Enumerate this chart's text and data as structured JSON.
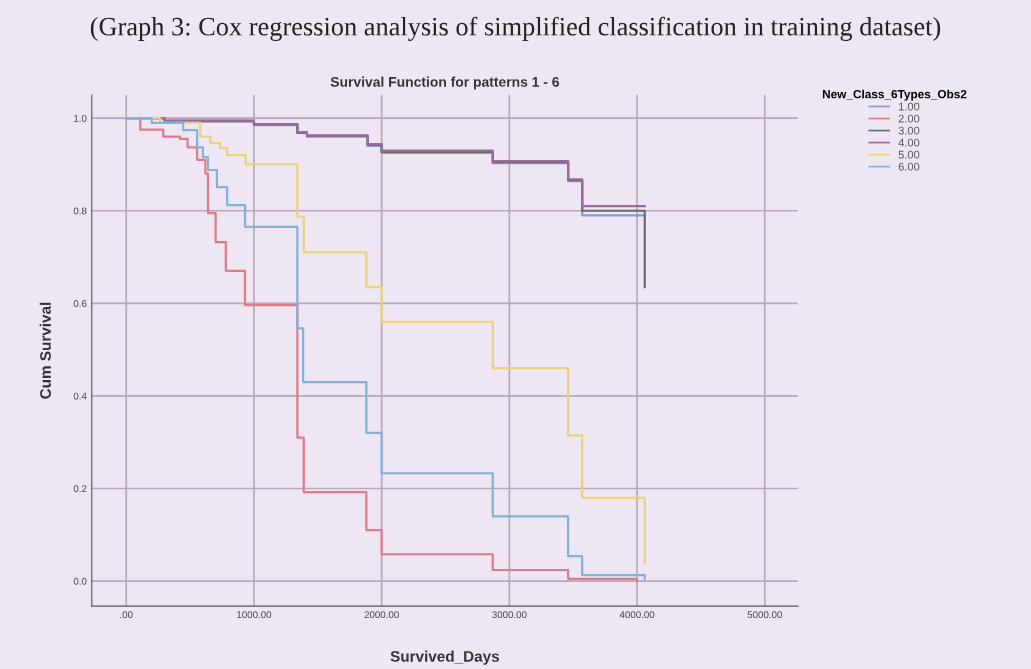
{
  "chart_data": {
    "type": "step",
    "title": "Survival Function for patterns 1 - 6",
    "xlabel": "Survived_Days",
    "ylabel": "Cum Survival",
    "legend_title": "New_Class_6Types_Obs2",
    "annotations": [
      "(Graph 3: Cox regression analysis of simplified classification in training dataset)"
    ],
    "xlim": [
      -270,
      5260
    ],
    "ylim": [
      -0.054,
      1.05
    ],
    "xticks": [
      {
        "value": 0,
        "label": ".00"
      },
      {
        "value": 1000,
        "label": "1000.00"
      },
      {
        "value": 2000,
        "label": "2000.00"
      },
      {
        "value": 3000,
        "label": "3000.00"
      },
      {
        "value": 4000,
        "label": "4000.00"
      },
      {
        "value": 5000,
        "label": "5000.00"
      }
    ],
    "yticks": [
      {
        "value": 0,
        "label": "0.0"
      },
      {
        "value": 0.2,
        "label": "0.2"
      },
      {
        "value": 0.4,
        "label": "0.4"
      },
      {
        "value": 0.6,
        "label": "0.6"
      },
      {
        "value": 0.8,
        "label": "0.8"
      },
      {
        "value": 1,
        "label": "1.0"
      }
    ],
    "grid": true,
    "legend": "top right",
    "marker": "none",
    "line_style": "solid",
    "series": [
      {
        "name": "1.00",
        "color": "#8a9bc8",
        "x": [
          0,
          300,
          1000,
          1340,
          1415,
          1890,
          2000,
          2870,
          3460,
          3570,
          4060
        ],
        "values": [
          1.0,
          0.995,
          0.985,
          0.968,
          0.96,
          0.94,
          0.925,
          0.903,
          0.864,
          0.79,
          0.79
        ]
      },
      {
        "name": "2.00",
        "color": "#e07a86",
        "x": [
          0,
          110,
          290,
          420,
          480,
          555,
          620,
          640,
          700,
          780,
          930,
          1340,
          1390,
          1880,
          2000,
          2870,
          3460,
          4000
        ],
        "values": [
          1.0,
          0.975,
          0.96,
          0.955,
          0.937,
          0.91,
          0.88,
          0.795,
          0.732,
          0.67,
          0.596,
          0.31,
          0.192,
          0.11,
          0.058,
          0.024,
          0.005,
          0.0
        ]
      },
      {
        "name": "3.00",
        "color": "#6b6b6b",
        "x": [
          0,
          300,
          1000,
          1340,
          1415,
          1890,
          2000,
          2870,
          3460,
          3570,
          4060
        ],
        "values": [
          1.0,
          0.993,
          0.987,
          0.968,
          0.962,
          0.942,
          0.927,
          0.905,
          0.866,
          0.8,
          0.635
        ]
      },
      {
        "name": "4.00",
        "color": "#9a6a9e",
        "x": [
          0,
          300,
          1000,
          1340,
          1415,
          1890,
          2000,
          2870,
          3460,
          3570,
          4060
        ],
        "values": [
          1.0,
          0.994,
          0.986,
          0.97,
          0.963,
          0.944,
          0.93,
          0.907,
          0.868,
          0.81,
          0.81
        ]
      },
      {
        "name": "5.00",
        "color": "#e8d27a",
        "x": [
          0,
          265,
          580,
          660,
          735,
          790,
          935,
          1340,
          1390,
          1880,
          2000,
          2870,
          3460,
          3570,
          4060
        ],
        "values": [
          1.0,
          0.99,
          0.96,
          0.946,
          0.935,
          0.92,
          0.9,
          0.787,
          0.71,
          0.635,
          0.56,
          0.46,
          0.315,
          0.18,
          0.04
        ]
      },
      {
        "name": "6.00",
        "color": "#7fb3d8",
        "x": [
          0,
          200,
          446,
          555,
          600,
          640,
          710,
          790,
          930,
          1340,
          1385,
          1880,
          2000,
          2870,
          3460,
          3570,
          4060
        ],
        "values": [
          1.0,
          0.99,
          0.974,
          0.937,
          0.916,
          0.888,
          0.851,
          0.812,
          0.765,
          0.546,
          0.43,
          0.32,
          0.233,
          0.14,
          0.054,
          0.013,
          0.005
        ]
      }
    ]
  }
}
